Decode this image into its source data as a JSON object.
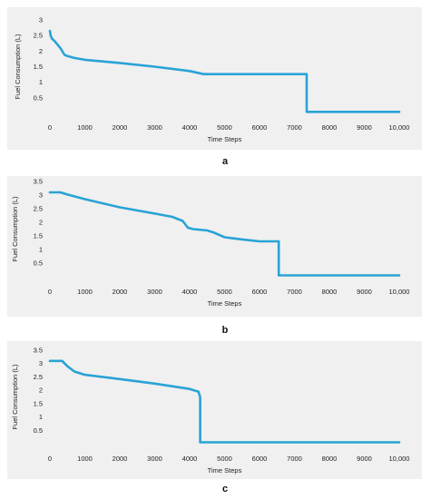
{
  "chart_data": [
    {
      "type": "line",
      "panel": "a",
      "xlabel": "Time Steps",
      "ylabel": "Fuel Consumption (L)",
      "xlim": [
        0,
        10000
      ],
      "ylim": [
        0,
        3
      ],
      "xticks": [
        "0",
        "1000",
        "2000",
        "3000",
        "4000",
        "5000",
        "6000",
        "7000",
        "8000",
        "9000",
        "10,000"
      ],
      "yticks": [
        "0.5",
        "1",
        "1.5",
        "2",
        "2.5",
        "3"
      ],
      "color": "#29a3d6",
      "x": [
        0,
        20,
        60,
        150,
        300,
        420,
        500,
        700,
        1000,
        2000,
        3000,
        4000,
        4400,
        7350,
        7350,
        10000
      ],
      "y": [
        2.65,
        2.5,
        2.4,
        2.3,
        2.1,
        1.88,
        1.84,
        1.78,
        1.72,
        1.62,
        1.5,
        1.36,
        1.26,
        1.26,
        0.05,
        0.05
      ]
    },
    {
      "type": "line",
      "panel": "b",
      "xlabel": "Time Steps",
      "ylabel": "Fuel Consumption (L)",
      "xlim": [
        0,
        10000
      ],
      "ylim": [
        0,
        3.5
      ],
      "xticks": [
        "0",
        "1000",
        "2000",
        "3000",
        "4000",
        "5000",
        "6000",
        "7000",
        "8000",
        "9000",
        "10,000"
      ],
      "yticks": [
        "0.5",
        "1",
        "1.5",
        "2",
        "2.5",
        "3",
        "3.5"
      ],
      "color": "#29a3d6",
      "x": [
        0,
        300,
        500,
        1000,
        2000,
        3000,
        3500,
        3800,
        3950,
        4100,
        4500,
        4700,
        5000,
        5500,
        6000,
        6550,
        6550,
        10000
      ],
      "y": [
        3.1,
        3.1,
        3.02,
        2.85,
        2.55,
        2.32,
        2.2,
        2.05,
        1.8,
        1.75,
        1.7,
        1.62,
        1.45,
        1.37,
        1.3,
        1.3,
        0.05,
        0.05
      ]
    },
    {
      "type": "line",
      "panel": "c",
      "xlabel": "Time Steps",
      "ylabel": "Fuel Consumption (L)",
      "xlim": [
        0,
        10000
      ],
      "ylim": [
        0,
        3.5
      ],
      "xticks": [
        "0",
        "1000",
        "2000",
        "3000",
        "4000",
        "5000",
        "6000",
        "7000",
        "8000",
        "9000",
        "10,000"
      ],
      "yticks": [
        "0.5",
        "1",
        "1.5",
        "2",
        "2.5",
        "3",
        "3.5"
      ],
      "color": "#29a3d6",
      "x": [
        0,
        350,
        500,
        700,
        1000,
        2000,
        3000,
        4000,
        4250,
        4300,
        4300,
        10000
      ],
      "y": [
        3.1,
        3.1,
        2.9,
        2.7,
        2.58,
        2.42,
        2.25,
        2.05,
        1.95,
        1.75,
        0.05,
        0.05
      ]
    }
  ]
}
